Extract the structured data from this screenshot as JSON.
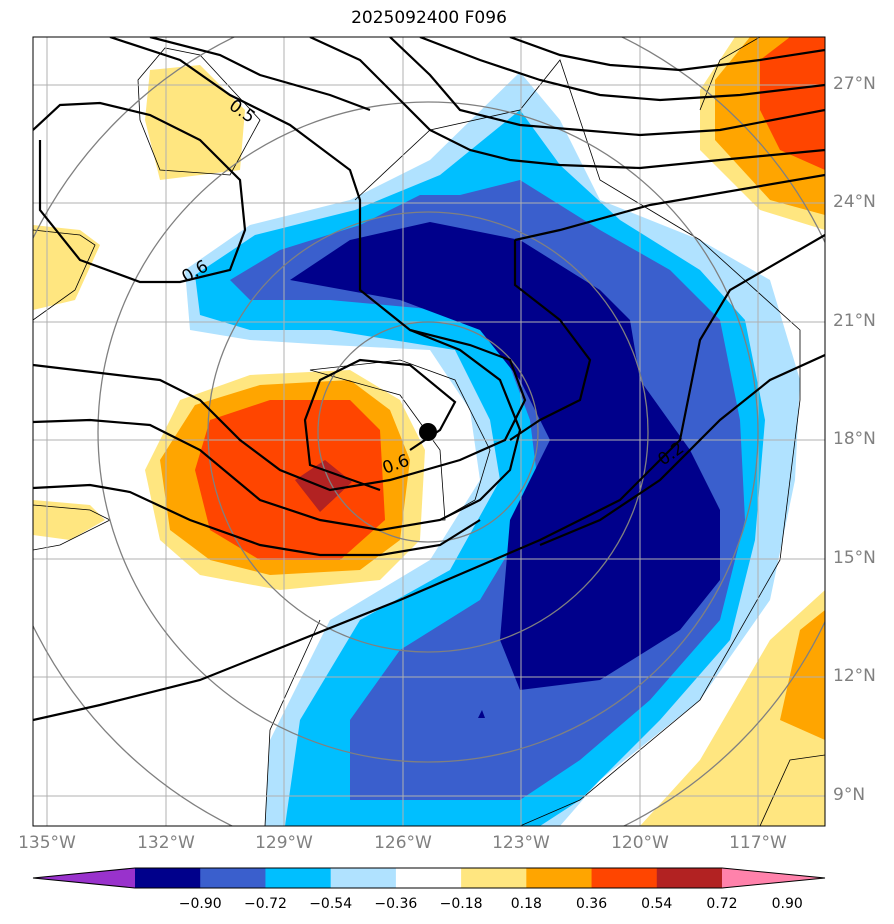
{
  "title": "2025092400 F096",
  "map": {
    "lon_ticks": [
      "135°W",
      "132°W",
      "129°W",
      "126°W",
      "123°W",
      "120°W",
      "117°W"
    ],
    "lat_ticks": [
      "27°N",
      "24°N",
      "21°N",
      "18°N",
      "15°N",
      "12°N",
      "9°N"
    ],
    "contour_labels": [
      "0.5",
      "0.6",
      "0.6",
      "0.2"
    ],
    "storm_center": "black-dot"
  },
  "colorbar": {
    "tick_labels": [
      "−0.90",
      "−0.72",
      "−0.54",
      "−0.36",
      "−0.18",
      "0.18",
      "0.36",
      "0.54",
      "0.72",
      "0.90"
    ],
    "colors": [
      "#9932cc",
      "#00008b",
      "#3a5fcd",
      "#00bfff",
      "#b0e2ff",
      "#ffffff",
      "#ffe680",
      "#ffa500",
      "#ff4500",
      "#b22222",
      "#ff82ab"
    ]
  }
}
